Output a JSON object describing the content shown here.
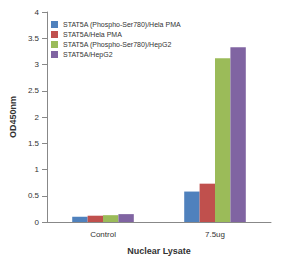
{
  "chart_data": {
    "type": "bar",
    "x_label": "Nuclear Lysate",
    "y_label": "OD450nm",
    "categories": [
      "Control",
      "7.5ug"
    ],
    "series": [
      {
        "name": "STAT5A (Phospho-Ser780)/Hela PMA",
        "color": "#4F81BD",
        "values": [
          0.1,
          0.58
        ]
      },
      {
        "name": "STAT5A/Hela PMA",
        "color": "#C0504D",
        "values": [
          0.12,
          0.73
        ]
      },
      {
        "name": "STAT5A (Phospho-Ser780)/HepG2",
        "color": "#9BBB59",
        "values": [
          0.13,
          3.12
        ]
      },
      {
        "name": "STAT5A/HepG2",
        "color": "#8064A2",
        "values": [
          0.15,
          3.33
        ]
      }
    ],
    "ylim": [
      0,
      4
    ],
    "yticks": [
      0,
      0.5,
      1,
      1.5,
      2,
      2.5,
      3,
      3.5,
      4
    ],
    "grid": false,
    "legend": "top-left"
  }
}
